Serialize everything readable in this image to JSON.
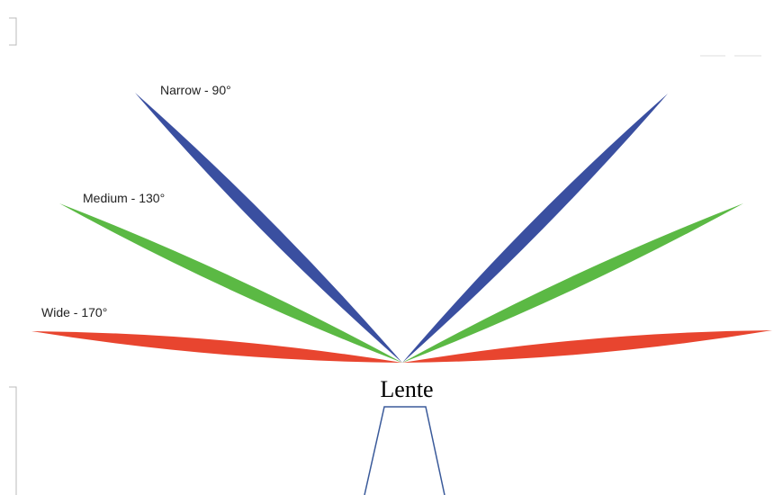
{
  "labels": {
    "narrow": "Narrow - 90°",
    "medium": "Medium - 130°",
    "wide": "Wide - 170°"
  },
  "lens": "Lente"
}
